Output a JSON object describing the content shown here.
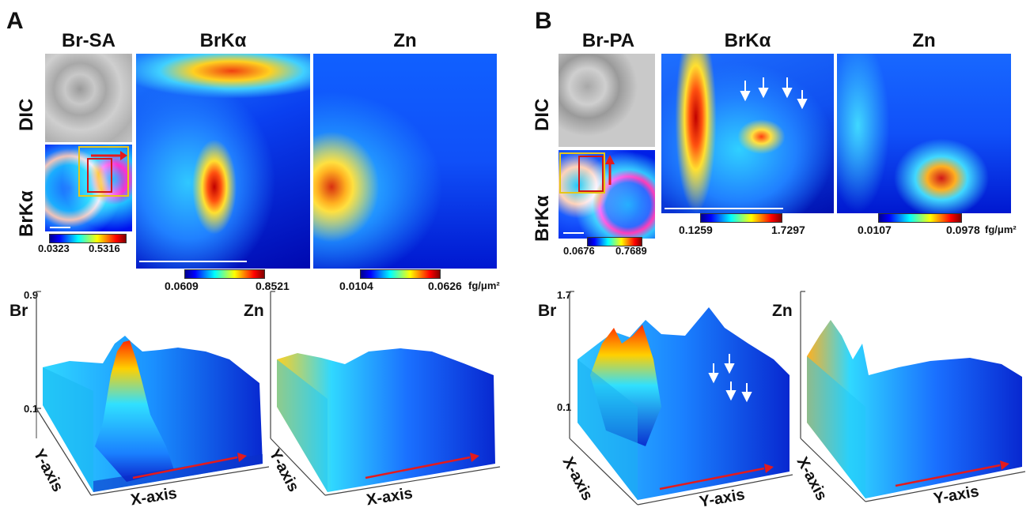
{
  "panelA": {
    "letter": "A",
    "title_sample": "Br-SA",
    "title_br": "BrKα",
    "title_zn": "Zn",
    "row_dic": "DIC",
    "row_br": "BrKα",
    "small_scale": [
      "0.0323",
      "0.5316"
    ],
    "br_scale": [
      "0.0609",
      "0.8521"
    ],
    "zn_scale": [
      "0.0104",
      "0.0626"
    ],
    "zn_unit": "fg/μm²",
    "plot_br_label": "Br",
    "plot_zn_label": "Zn",
    "plot_zmax": "0.9",
    "plot_zmin": "0.1",
    "axis1": "Y-axis",
    "axis2": "X-axis"
  },
  "panelB": {
    "letter": "B",
    "title_sample": "Br-PA",
    "title_br": "BrKα",
    "title_zn": "Zn",
    "row_dic": "DIC",
    "row_br": "BrKα",
    "small_scale": [
      "0.0676",
      "0.7689"
    ],
    "br_scale": [
      "0.1259",
      "1.7297"
    ],
    "zn_scale": [
      "0.0107",
      "0.0978"
    ],
    "zn_unit": "fg/μm²",
    "plot_br_label": "Br",
    "plot_zn_label": "Zn",
    "plot_zmax": "1.7",
    "plot_zmin": "0.1",
    "axis1": "X-axis",
    "axis2": "Y-axis"
  },
  "colors": {
    "arrow": "#e41a1c",
    "box_yellow": "#e6c619",
    "box_red": "#d01818"
  }
}
